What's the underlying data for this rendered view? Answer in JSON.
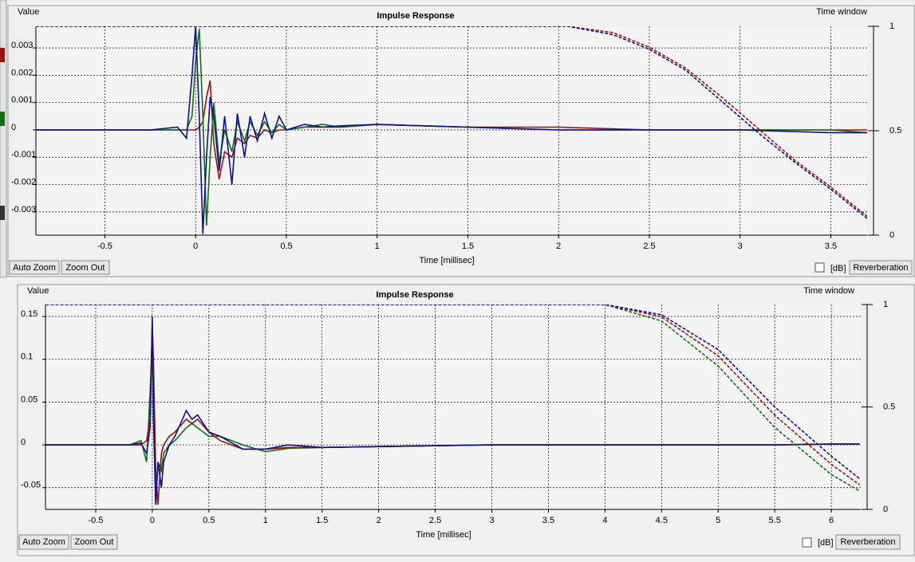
{
  "chart_data": [
    {
      "type": "line",
      "title": "Impulse Response",
      "ylabel": "Value",
      "y2label": "Time window",
      "xlabel": "Time [millisec]",
      "xlim": [
        -0.88,
        3.7
      ],
      "ylim": [
        -0.00385,
        0.00379
      ],
      "y2lim": [
        0,
        1
      ],
      "xticks": [
        -0.5,
        0,
        0.5,
        1,
        1.5,
        2,
        2.5,
        3,
        3.5
      ],
      "yticks": [
        0.003,
        0.002,
        0.001,
        0,
        -0.001,
        -0.002,
        -0.003
      ],
      "y2ticks": [
        1,
        0.5,
        0
      ],
      "grid": true,
      "x": [
        -0.88,
        -0.25,
        -0.1,
        -0.05,
        -0.02,
        0,
        0.02,
        0.04,
        0.06,
        0.08,
        0.1,
        0.13,
        0.16,
        0.2,
        0.23,
        0.27,
        0.3,
        0.34,
        0.38,
        0.42,
        0.46,
        0.5,
        0.6,
        0.7,
        0.8,
        1.0,
        1.5,
        2.0,
        2.5,
        3.0,
        3.5,
        3.7
      ],
      "series": [
        {
          "color": "#a01010",
          "values": [
            0,
            0,
            0,
            0,
            0,
            0,
            0.0001,
            0.0003,
            0.0012,
            0.0018,
            -0.0005,
            -0.0018,
            -0.0008,
            -0.001,
            -0.0003,
            -0.0005,
            -0.0002,
            -0.0003,
            0,
            -0.0001,
            0,
            0,
            0.0001,
            0.0001,
            0.0001,
            0.0002,
            0.0001,
            0.0001,
            0,
            0,
            0,
            0
          ]
        },
        {
          "color": "#107010",
          "values": [
            0,
            0,
            0,
            0,
            0.0005,
            0.0025,
            0.0037,
            0.0005,
            -0.0035,
            -0.001,
            0.001,
            -0.0012,
            0,
            -0.0008,
            0.0003,
            -0.0004,
            0.0003,
            -0.0002,
            0.0003,
            -0.0001,
            0.0002,
            0,
            0.0001,
            0.0002,
            0.0001,
            0.0002,
            0.0001,
            0,
            0,
            0,
            0,
            -0.0001
          ]
        },
        {
          "color": "#101090",
          "values": [
            0,
            0,
            0.0001,
            -0.0003,
            0.002,
            0.0038,
            0.0005,
            -0.0038,
            -0.001,
            0.0012,
            0.0005,
            -0.0015,
            0.0005,
            -0.002,
            0.0006,
            -0.001,
            0.0005,
            -0.0004,
            0.0006,
            -0.0003,
            0.0005,
            0,
            0.0002,
            0.0001,
            0.00015,
            0.0002,
            0.0001,
            0,
            0,
            0,
            -0.0001,
            -0.0001
          ]
        },
        {
          "color": "#a01010",
          "axis": "y2",
          "dashed": true,
          "x": [
            -0.88,
            2.05,
            2.3,
            2.5,
            2.7,
            2.9,
            3.1,
            3.3,
            3.5,
            3.7
          ],
          "values": [
            1,
            1,
            0.97,
            0.9,
            0.8,
            0.66,
            0.51,
            0.36,
            0.23,
            0.09
          ]
        },
        {
          "color": "#101090",
          "axis": "y2",
          "dashed": true,
          "x": [
            -0.88,
            2.05,
            2.3,
            2.5,
            2.7,
            2.9,
            3.1,
            3.3,
            3.5,
            3.7
          ],
          "values": [
            1,
            1,
            0.96,
            0.89,
            0.79,
            0.64,
            0.49,
            0.35,
            0.22,
            0.08
          ]
        }
      ]
    },
    {
      "type": "line",
      "title": "Impulse Response",
      "ylabel": "Value",
      "y2label": "Time window",
      "xlabel": "Time [millisec]",
      "xlim": [
        -0.944,
        6.26
      ],
      "ylim": [
        -0.0754,
        0.164
      ],
      "y2lim": [
        0,
        1
      ],
      "xticks": [
        -0.5,
        0,
        0.5,
        1,
        1.5,
        2,
        2.5,
        3,
        3.5,
        4,
        4.5,
        5,
        5.5,
        6
      ],
      "yticks": [
        0.15,
        0.1,
        0.05,
        0,
        -0.05
      ],
      "y2ticks": [
        1,
        0.5,
        0
      ],
      "grid": true,
      "x": [
        -0.94,
        -0.2,
        -0.1,
        -0.05,
        -0.02,
        0,
        0.01,
        0.03,
        0.05,
        0.08,
        0.1,
        0.15,
        0.2,
        0.3,
        0.35,
        0.4,
        0.5,
        0.6,
        0.8,
        1.0,
        1.2,
        1.5,
        2,
        3,
        4,
        5,
        5.5,
        6,
        6.25
      ],
      "series": [
        {
          "color": "#107010",
          "values": [
            0,
            0,
            0.005,
            -0.02,
            0.06,
            0.12,
            0.03,
            -0.07,
            -0.02,
            -0.03,
            -0.01,
            0,
            0.005,
            0.02,
            0.025,
            0.02,
            0.01,
            0.01,
            0,
            -0.008,
            -0.004,
            -0.003,
            -0.002,
            0,
            0,
            0,
            0,
            0.001,
            0.001
          ]
        },
        {
          "color": "#a01010",
          "values": [
            0,
            0,
            0,
            0.005,
            0.03,
            0.14,
            0.1,
            -0.03,
            -0.07,
            -0.01,
            0,
            0.01,
            0.015,
            0.03,
            0.025,
            0.03,
            0.015,
            0.005,
            -0.005,
            -0.005,
            -0.003,
            -0.003,
            -0.002,
            0,
            0,
            0,
            0,
            0.001,
            0.001
          ]
        },
        {
          "color": "#101090",
          "values": [
            0,
            0,
            0.002,
            -0.01,
            0.02,
            0.15,
            0.05,
            -0.07,
            -0.02,
            -0.05,
            -0.02,
            0,
            0.01,
            0.04,
            0.03,
            0.035,
            0.015,
            0.01,
            -0.005,
            -0.005,
            0,
            -0.003,
            -0.002,
            0,
            0,
            0,
            0,
            0.001,
            0.001
          ]
        },
        {
          "color": "#107010",
          "axis": "y2",
          "dashed": true,
          "x": [
            -0.94,
            4.0,
            4.5,
            5,
            5.5,
            6,
            6.25
          ],
          "values": [
            1,
            1,
            0.92,
            0.7,
            0.4,
            0.17,
            0.09
          ]
        },
        {
          "color": "#a01010",
          "axis": "y2",
          "dashed": true,
          "x": [
            -0.94,
            4.0,
            4.5,
            5,
            5.5,
            6,
            6.25
          ],
          "values": [
            1,
            1,
            0.94,
            0.75,
            0.46,
            0.22,
            0.12
          ]
        },
        {
          "color": "#101090",
          "axis": "y2",
          "dashed": true,
          "x": [
            -0.94,
            4.0,
            4.5,
            5,
            5.5,
            6,
            6.25
          ],
          "values": [
            1,
            1,
            0.95,
            0.78,
            0.5,
            0.26,
            0.15
          ]
        }
      ]
    }
  ],
  "ui": {
    "panels": [
      {
        "buttons": [
          "Auto Zoom",
          "Zoom Out"
        ],
        "checkbox": "[dB]",
        "action": "Reverberation"
      },
      {
        "buttons": [
          "Auto Zoom",
          "Zoom Out"
        ],
        "checkbox": "[dB]",
        "action": "Reverberation"
      }
    ]
  }
}
